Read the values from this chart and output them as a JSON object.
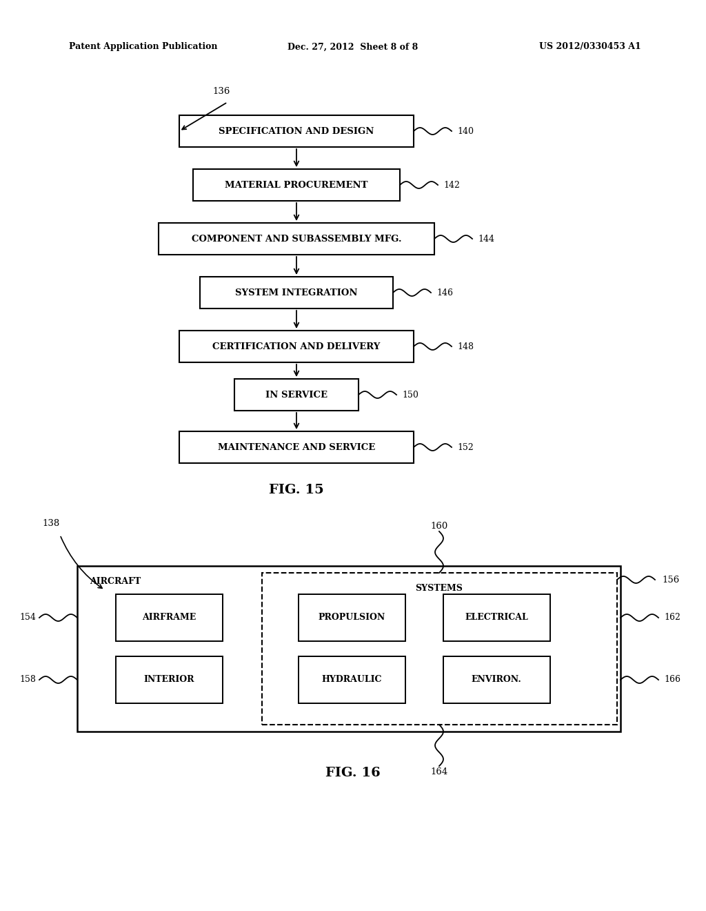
{
  "bg_color": "#ffffff",
  "header_left": "Patent Application Publication",
  "header_center": "Dec. 27, 2012  Sheet 8 of 8",
  "header_right": "US 2012/0330453 A1",
  "fig15_label": "FIG. 15",
  "fig16_label": "FIG. 16",
  "flow_boxes": [
    {
      "label": "SPECIFICATION AND DESIGN",
      "ref": "140"
    },
    {
      "label": "MATERIAL PROCUREMENT",
      "ref": "142"
    },
    {
      "label": "COMPONENT AND SUBASSEMBLY MFG.",
      "ref": "144"
    },
    {
      "label": "SYSTEM INTEGRATION",
      "ref": "146"
    },
    {
      "label": "CERTIFICATION AND DELIVERY",
      "ref": "148"
    },
    {
      "label": "IN SERVICE",
      "ref": "150"
    },
    {
      "label": "MAINTENANCE AND SERVICE",
      "ref": "152"
    }
  ],
  "arrow136_label": "136",
  "fig16": {
    "aircraft_label": "AIRCRAFT",
    "systems_label": "SYSTEMS",
    "ref138": "138",
    "ref154": "154",
    "ref156": "156",
    "ref158": "158",
    "ref160": "160",
    "ref162": "162",
    "ref164": "164",
    "ref166": "166",
    "cells_row0": [
      "AIRFRAME",
      "PROPULSION",
      "ELECTRICAL"
    ],
    "cells_row1": [
      "INTERIOR",
      "HYDRAULIC",
      "ENVIRON."
    ]
  }
}
